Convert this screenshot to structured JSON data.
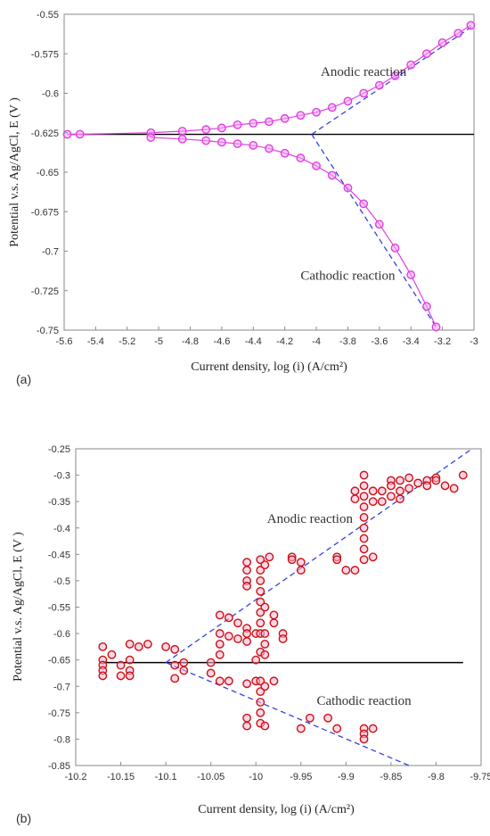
{
  "chart_data": [
    {
      "type": "scatter",
      "panel_label": "(a)",
      "xlabel": "Current density, log (i) (A/cm²)",
      "ylabel": "Potential v.s. Ag/AgCl, E (V )",
      "xlim": [
        -5.6,
        -3.0
      ],
      "ylim": [
        -0.75,
        -0.55
      ],
      "xticks": [
        "-5.6",
        "-5.4",
        "-5.2",
        "-5",
        "-4.8",
        "-4.6",
        "-4.4",
        "-4.2",
        "-4",
        "-3.8",
        "-3.6",
        "-3.4",
        "-3.2",
        "-3"
      ],
      "yticks": [
        "-0.55",
        "-0.575",
        "-0.6",
        "-0.625",
        "-0.65",
        "-0.675",
        "-0.7",
        "-0.725",
        "-0.75"
      ],
      "grid": false,
      "series": [
        {
          "role": "anodic",
          "color": "#e040e0",
          "marker": "circle",
          "points": [
            [
              -5.58,
              -0.626
            ],
            [
              -5.5,
              -0.626
            ],
            [
              -5.05,
              -0.625
            ],
            [
              -4.85,
              -0.624
            ],
            [
              -4.7,
              -0.623
            ],
            [
              -4.6,
              -0.622
            ],
            [
              -4.5,
              -0.62
            ],
            [
              -4.4,
              -0.619
            ],
            [
              -4.3,
              -0.618
            ],
            [
              -4.2,
              -0.616
            ],
            [
              -4.1,
              -0.614
            ],
            [
              -4.0,
              -0.612
            ],
            [
              -3.9,
              -0.609
            ],
            [
              -3.8,
              -0.605
            ],
            [
              -3.7,
              -0.6
            ],
            [
              -3.6,
              -0.595
            ],
            [
              -3.5,
              -0.589
            ],
            [
              -3.4,
              -0.582
            ],
            [
              -3.3,
              -0.575
            ],
            [
              -3.2,
              -0.568
            ],
            [
              -3.1,
              -0.562
            ],
            [
              -3.02,
              -0.557
            ]
          ]
        },
        {
          "role": "cathodic",
          "color": "#e040e0",
          "marker": "circle",
          "points": [
            [
              -5.05,
              -0.628
            ],
            [
              -4.85,
              -0.629
            ],
            [
              -4.7,
              -0.63
            ],
            [
              -4.6,
              -0.631
            ],
            [
              -4.5,
              -0.632
            ],
            [
              -4.4,
              -0.633
            ],
            [
              -4.3,
              -0.635
            ],
            [
              -4.2,
              -0.638
            ],
            [
              -4.1,
              -0.641
            ],
            [
              -4.0,
              -0.646
            ],
            [
              -3.9,
              -0.652
            ],
            [
              -3.8,
              -0.66
            ],
            [
              -3.7,
              -0.67
            ],
            [
              -3.6,
              -0.683
            ],
            [
              -3.5,
              -0.698
            ],
            [
              -3.4,
              -0.715
            ],
            [
              -3.3,
              -0.735
            ],
            [
              -3.24,
              -0.748
            ]
          ]
        }
      ],
      "lines": [
        {
          "role": "corrosion-potential",
          "color": "#000000",
          "style": "solid",
          "points": [
            [
              -5.58,
              -0.626
            ],
            [
              -3.0,
              -0.626
            ]
          ]
        },
        {
          "role": "tafel-anodic",
          "color": "#3344dd",
          "style": "dashed",
          "points": [
            [
              -4.03,
              -0.626
            ],
            [
              -3.0,
              -0.557
            ]
          ]
        },
        {
          "role": "tafel-cathodic",
          "color": "#3344dd",
          "style": "dashed",
          "points": [
            [
              -4.03,
              -0.626
            ],
            [
              -3.24,
              -0.748
            ]
          ]
        }
      ],
      "annotations": [
        {
          "text": "Anodic reaction",
          "x": -3.7,
          "y": -0.589
        },
        {
          "text": "Cathodic reaction",
          "x": -3.8,
          "y": -0.718
        }
      ]
    },
    {
      "type": "scatter",
      "panel_label": "(b)",
      "xlabel": "Current density, log (i) (A/cm²)",
      "ylabel": "Potential v.s. Ag/AgCl, E (V )",
      "xlim": [
        -10.2,
        -9.75
      ],
      "ylim": [
        -0.85,
        -0.25
      ],
      "xticks": [
        "-10.2",
        "-10.15",
        "-10.1",
        "-10.05",
        "-10",
        "-9.95",
        "-9.9",
        "-9.85",
        "-9.8",
        "-9.75"
      ],
      "yticks": [
        "-0.25",
        "-0.3",
        "-0.35",
        "-0.4",
        "-0.45",
        "-0.5",
        "-0.55",
        "-0.6",
        "-0.65",
        "-0.7",
        "-0.75",
        "-0.8",
        "-0.85"
      ],
      "grid": false,
      "series": [
        {
          "role": "measured",
          "color": "#cc1111",
          "marker": "circle",
          "points": [
            [
              -10.17,
              -0.625
            ],
            [
              -10.17,
              -0.65
            ],
            [
              -10.17,
              -0.66
            ],
            [
              -10.17,
              -0.67
            ],
            [
              -10.17,
              -0.68
            ],
            [
              -10.16,
              -0.64
            ],
            [
              -10.15,
              -0.66
            ],
            [
              -10.15,
              -0.68
            ],
            [
              -10.14,
              -0.62
            ],
            [
              -10.14,
              -0.65
            ],
            [
              -10.14,
              -0.67
            ],
            [
              -10.14,
              -0.68
            ],
            [
              -10.13,
              -0.625
            ],
            [
              -10.12,
              -0.62
            ],
            [
              -10.1,
              -0.625
            ],
            [
              -10.09,
              -0.63
            ],
            [
              -10.09,
              -0.66
            ],
            [
              -10.09,
              -0.685
            ],
            [
              -10.08,
              -0.655
            ],
            [
              -10.08,
              -0.67
            ],
            [
              -10.05,
              -0.655
            ],
            [
              -10.05,
              -0.675
            ],
            [
              -10.04,
              -0.565
            ],
            [
              -10.04,
              -0.6
            ],
            [
              -10.04,
              -0.62
            ],
            [
              -10.04,
              -0.64
            ],
            [
              -10.04,
              -0.69
            ],
            [
              -10.03,
              -0.57
            ],
            [
              -10.03,
              -0.605
            ],
            [
              -10.03,
              -0.69
            ],
            [
              -10.02,
              -0.58
            ],
            [
              -10.02,
              -0.61
            ],
            [
              -10.01,
              -0.59
            ],
            [
              -10.01,
              -0.6
            ],
            [
              -10.01,
              -0.615
            ],
            [
              -10.01,
              -0.695
            ],
            [
              -10.01,
              -0.76
            ],
            [
              -10.01,
              -0.775
            ],
            [
              -10.0,
              -0.6
            ],
            [
              -10.0,
              -0.65
            ],
            [
              -10.0,
              -0.69
            ],
            [
              -10.01,
              -0.465
            ],
            [
              -10.01,
              -0.48
            ],
            [
              -10.01,
              -0.5
            ],
            [
              -10.01,
              -0.51
            ],
            [
              -9.995,
              -0.46
            ],
            [
              -9.995,
              -0.48
            ],
            [
              -9.995,
              -0.5
            ],
            [
              -9.995,
              -0.52
            ],
            [
              -9.995,
              -0.54
            ],
            [
              -9.995,
              -0.56
            ],
            [
              -9.995,
              -0.58
            ],
            [
              -9.995,
              -0.6
            ],
            [
              -9.995,
              -0.635
            ],
            [
              -9.995,
              -0.69
            ],
            [
              -9.995,
              -0.71
            ],
            [
              -9.995,
              -0.73
            ],
            [
              -9.995,
              -0.75
            ],
            [
              -9.995,
              -0.77
            ],
            [
              -9.99,
              -0.47
            ],
            [
              -9.99,
              -0.55
            ],
            [
              -9.99,
              -0.6
            ],
            [
              -9.99,
              -0.62
            ],
            [
              -9.99,
              -0.64
            ],
            [
              -9.99,
              -0.7
            ],
            [
              -9.99,
              -0.775
            ],
            [
              -9.985,
              -0.455
            ],
            [
              -9.98,
              -0.565
            ],
            [
              -9.98,
              -0.58
            ],
            [
              -9.98,
              -0.69
            ],
            [
              -9.97,
              -0.6
            ],
            [
              -9.97,
              -0.61
            ],
            [
              -9.96,
              -0.455
            ],
            [
              -9.96,
              -0.46
            ],
            [
              -9.95,
              -0.465
            ],
            [
              -9.95,
              -0.48
            ],
            [
              -9.95,
              -0.78
            ],
            [
              -9.94,
              -0.76
            ],
            [
              -9.92,
              -0.76
            ],
            [
              -9.91,
              -0.78
            ],
            [
              -9.91,
              -0.455
            ],
            [
              -9.91,
              -0.46
            ],
            [
              -9.9,
              -0.48
            ],
            [
              -9.89,
              -0.33
            ],
            [
              -9.89,
              -0.345
            ],
            [
              -9.89,
              -0.48
            ],
            [
              -9.88,
              -0.3
            ],
            [
              -9.88,
              -0.32
            ],
            [
              -9.88,
              -0.34
            ],
            [
              -9.88,
              -0.36
            ],
            [
              -9.88,
              -0.38
            ],
            [
              -9.88,
              -0.4
            ],
            [
              -9.88,
              -0.42
            ],
            [
              -9.88,
              -0.44
            ],
            [
              -9.88,
              -0.46
            ],
            [
              -9.88,
              -0.78
            ],
            [
              -9.88,
              -0.79
            ],
            [
              -9.88,
              -0.8
            ],
            [
              -9.87,
              -0.33
            ],
            [
              -9.87,
              -0.35
            ],
            [
              -9.87,
              -0.455
            ],
            [
              -9.87,
              -0.78
            ],
            [
              -9.86,
              -0.35
            ],
            [
              -9.86,
              -0.33
            ],
            [
              -9.85,
              -0.31
            ],
            [
              -9.85,
              -0.32
            ],
            [
              -9.85,
              -0.34
            ],
            [
              -9.84,
              -0.31
            ],
            [
              -9.84,
              -0.33
            ],
            [
              -9.84,
              -0.345
            ],
            [
              -9.83,
              -0.305
            ],
            [
              -9.83,
              -0.325
            ],
            [
              -9.82,
              -0.315
            ],
            [
              -9.81,
              -0.31
            ],
            [
              -9.81,
              -0.32
            ],
            [
              -9.8,
              -0.305
            ],
            [
              -9.8,
              -0.31
            ],
            [
              -9.79,
              -0.32
            ],
            [
              -9.78,
              -0.325
            ],
            [
              -9.77,
              -0.3
            ]
          ]
        }
      ],
      "lines": [
        {
          "role": "corrosion-potential",
          "color": "#000000",
          "style": "solid",
          "points": [
            [
              -10.17,
              -0.655
            ],
            [
              -9.77,
              -0.655
            ]
          ]
        },
        {
          "role": "tafel-anodic",
          "color": "#3344dd",
          "style": "dashed",
          "points": [
            [
              -10.1,
              -0.655
            ],
            [
              -9.76,
              -0.25
            ]
          ]
        },
        {
          "role": "tafel-cathodic",
          "color": "#3344dd",
          "style": "dashed",
          "points": [
            [
              -10.1,
              -0.655
            ],
            [
              -9.83,
              -0.85
            ]
          ]
        }
      ],
      "annotations": [
        {
          "text": "Anodic reaction",
          "x": -9.94,
          "y": -0.39
        },
        {
          "text": "Cathodic reaction",
          "x": -9.88,
          "y": -0.735
        }
      ]
    }
  ]
}
